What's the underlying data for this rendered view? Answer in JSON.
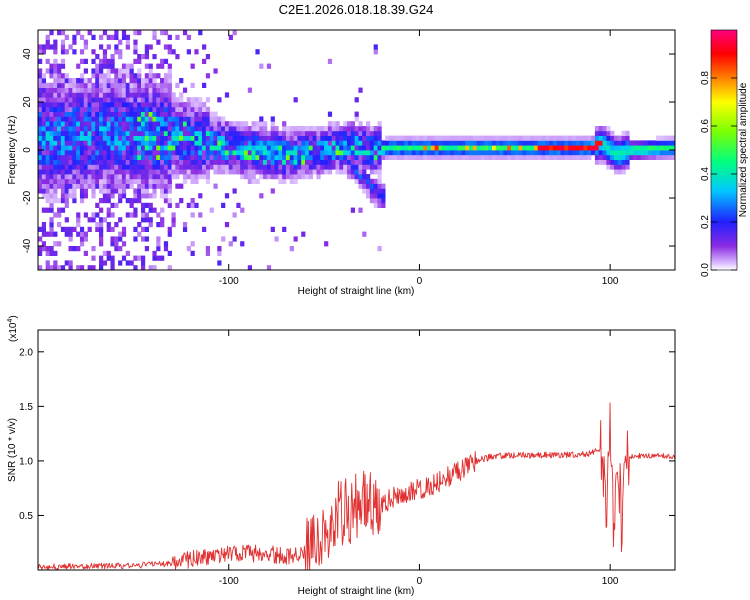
{
  "title": "C2E1.2026.018.18.39.G24",
  "chart_data": [
    {
      "type": "heatmap",
      "name": "spectrogram",
      "xlabel": "Height of straight line (km)",
      "ylabel": "Frequency (Hz)",
      "xlim": [
        -200,
        134
      ],
      "ylim": [
        -50,
        50
      ],
      "x_ticks": [
        -100,
        0,
        100
      ],
      "x_tick_labels": [
        "-100",
        "0",
        "100"
      ],
      "y_ticks": [
        -40,
        -20,
        0,
        20,
        40
      ],
      "y_tick_labels": [
        "-40",
        "-20",
        "0",
        "20",
        "40"
      ],
      "ridge": {
        "description": "dominant spectral ridge frequency (Hz) vs height (km)",
        "x": [
          -200,
          -160,
          -130,
          -110,
          -90,
          -70,
          -50,
          -35,
          -25,
          -15,
          0,
          30,
          60,
          90,
          96,
          100,
          104,
          110,
          134
        ],
        "y": [
          5,
          7,
          6,
          3,
          0,
          -2,
          0,
          2,
          0,
          1,
          1,
          1,
          1,
          1,
          3,
          0,
          -2,
          0,
          1
        ]
      },
      "colorbar": {
        "label": "Normalized spectral amplitude",
        "range": [
          0,
          1
        ],
        "ticks": [
          0.0,
          0.2,
          0.4,
          0.6,
          0.8
        ],
        "tick_labels": [
          "0.0",
          "0.2",
          "0.4",
          "0.6",
          "0.8"
        ],
        "colormap": "rainbow (white/violet low → blue → cyan → green → yellow → red → magenta high)"
      }
    },
    {
      "type": "line",
      "name": "snr",
      "xlabel": "Height of straight line (km)",
      "ylabel": "SNR (10 * v/v)",
      "y_scale_note": "(x10",
      "y_scale_exponent": "4",
      "xlim": [
        -200,
        134
      ],
      "ylim": [
        0,
        2.2
      ],
      "x_ticks": [
        -100,
        0,
        100
      ],
      "x_tick_labels": [
        "-100",
        "0",
        "100"
      ],
      "y_ticks": [
        0.5,
        1.0,
        1.5,
        2.0
      ],
      "y_tick_labels": [
        "0.5",
        "1.0",
        "1.5",
        "2.0"
      ],
      "series": [
        {
          "name": "SNR",
          "color": "#e03030",
          "x": [
            -200,
            -150,
            -130,
            -120,
            -100,
            -80,
            -70,
            -60,
            -50,
            -40,
            -35,
            -30,
            -20,
            -10,
            0,
            10,
            20,
            30,
            40,
            60,
            80,
            90,
            95,
            98,
            100,
            102,
            104,
            106,
            108,
            110,
            120,
            134
          ],
          "y": [
            0.03,
            0.04,
            0.06,
            0.1,
            0.15,
            0.15,
            0.12,
            0.18,
            0.35,
            0.55,
            0.55,
            0.6,
            0.6,
            0.7,
            0.75,
            0.8,
            0.9,
            1.0,
            1.05,
            1.05,
            1.06,
            1.07,
            1.1,
            0.6,
            1.3,
            0.3,
            1.1,
            0.4,
            1.0,
            1.04,
            1.05,
            1.04
          ]
        }
      ]
    }
  ]
}
